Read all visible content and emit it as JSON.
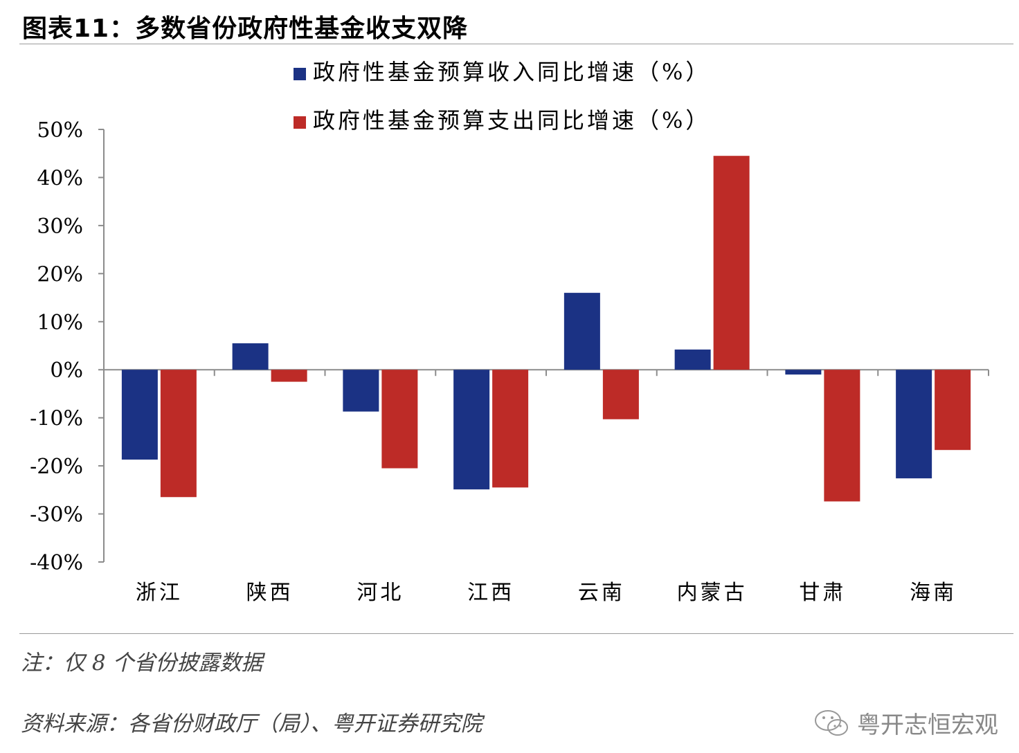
{
  "page": {
    "title": "图表11：多数省份政府性基金收支双降",
    "note": "注：仅 8 个省份披露数据",
    "source": "资料来源：各省份财政厅（局）、粤开证券研究院",
    "watermark": "粤开志恒宏观"
  },
  "chart_data": {
    "type": "bar",
    "title": "",
    "xlabel": "",
    "ylabel": "",
    "categories": [
      "浙江",
      "陕西",
      "河北",
      "江西",
      "云南",
      "内蒙古",
      "甘肃",
      "海南"
    ],
    "series": [
      {
        "name": "政府性基金预算收入同比增速（%）",
        "color": "#1b3284",
        "values": [
          -18.7,
          5.5,
          -8.7,
          -24.9,
          16.0,
          4.2,
          -1.0,
          -22.6
        ]
      },
      {
        "name": "政府性基金预算支出同比增速（%）",
        "color": "#bd2b27",
        "values": [
          -26.5,
          -2.5,
          -20.5,
          -24.5,
          -10.3,
          44.5,
          -27.4,
          -16.7
        ]
      }
    ],
    "ylim": [
      -40,
      50
    ],
    "yticks": [
      50,
      40,
      30,
      20,
      10,
      0,
      -10,
      -20,
      -30,
      -40
    ],
    "ytick_labels": [
      "50%",
      "40%",
      "30%",
      "20%",
      "10%",
      "0%",
      "-10%",
      "-20%",
      "-30%",
      "-40%"
    ],
    "grid": false,
    "legend_position": "top-center"
  }
}
